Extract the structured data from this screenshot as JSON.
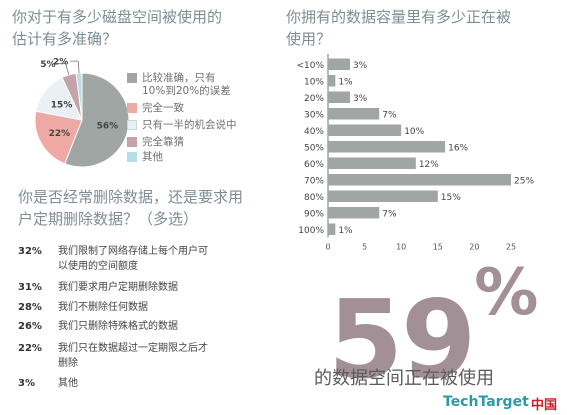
{
  "q1": {
    "title_line1": "你对于有多少磁盘空间被使用的",
    "title_line2": "估计有多准确？",
    "chart_data": {
      "type": "pie",
      "slices": [
        {
          "label": "比较准确，只有10%到20%的误差",
          "value": 56,
          "display": "56%",
          "color": "#9fa6a3"
        },
        {
          "label": "完全一致",
          "value": 22,
          "display": "22%",
          "color": "#efa9a5"
        },
        {
          "label": "只有一半的机会说中",
          "value": 15,
          "display": "15%",
          "color": "#e9f1f3"
        },
        {
          "label": "完全靠猜",
          "value": 5,
          "display": "5%",
          "color": "#c4a4a8"
        },
        {
          "label": "其他",
          "value": 2,
          "display": "2%",
          "color": "#b6dde8"
        }
      ]
    },
    "legend": [
      {
        "line1": "比较准确，只有",
        "line2": "10%到20%的误差"
      },
      {
        "line1": "完全一致",
        "line2": ""
      },
      {
        "line1": "只有一半的机会说中",
        "line2": ""
      },
      {
        "line1": "完全靠猜",
        "line2": ""
      },
      {
        "line1": "其他",
        "line2": ""
      }
    ]
  },
  "q2": {
    "title_line1": "你拥有的数据容量里有多少正在被",
    "title_line2": "使用？",
    "chart_data": {
      "type": "bar",
      "orientation": "horizontal",
      "categories": [
        "<10%",
        "10%",
        "20%",
        "30%",
        "40%",
        "50%",
        "60%",
        "70%",
        "80%",
        "90%",
        "100%"
      ],
      "values": [
        3,
        1,
        3,
        7,
        10,
        16,
        12,
        25,
        15,
        7,
        1
      ],
      "value_labels": [
        "3%",
        "1%",
        "3%",
        "7%",
        "10%",
        "16%",
        "12%",
        "25%",
        "15%",
        "7%",
        "1%"
      ],
      "xlim": [
        0,
        25
      ],
      "xticks": [
        "0",
        "5",
        "10",
        "15",
        "20",
        "25"
      ],
      "color": "#9fa6a3"
    }
  },
  "q3": {
    "title_line1": "你是否经常删除数据，还是要求用",
    "title_line2": "户定期删除数据？（多选）",
    "items": [
      {
        "value": "32%",
        "line1": "我们限制了网络存储上每个用户可",
        "line2": "以使用的空间额度"
      },
      {
        "value": "31%",
        "line1": "我们要求用户定期删除数据",
        "line2": ""
      },
      {
        "value": "28%",
        "line1": "我们不删除任何数据",
        "line2": ""
      },
      {
        "value": "26%",
        "line1": "我们只删除特殊格式的数据",
        "line2": ""
      },
      {
        "value": "22%",
        "line1": "我们只在数据超过一定期限之后才",
        "line2": "删除"
      },
      {
        "value": "3%",
        "line1": "其他",
        "line2": ""
      }
    ]
  },
  "highlight": {
    "number": "59",
    "symbol": "%",
    "caption": "的数据空间正在被使用"
  },
  "brand": {
    "name": "TechTarget",
    "region": "中国"
  }
}
